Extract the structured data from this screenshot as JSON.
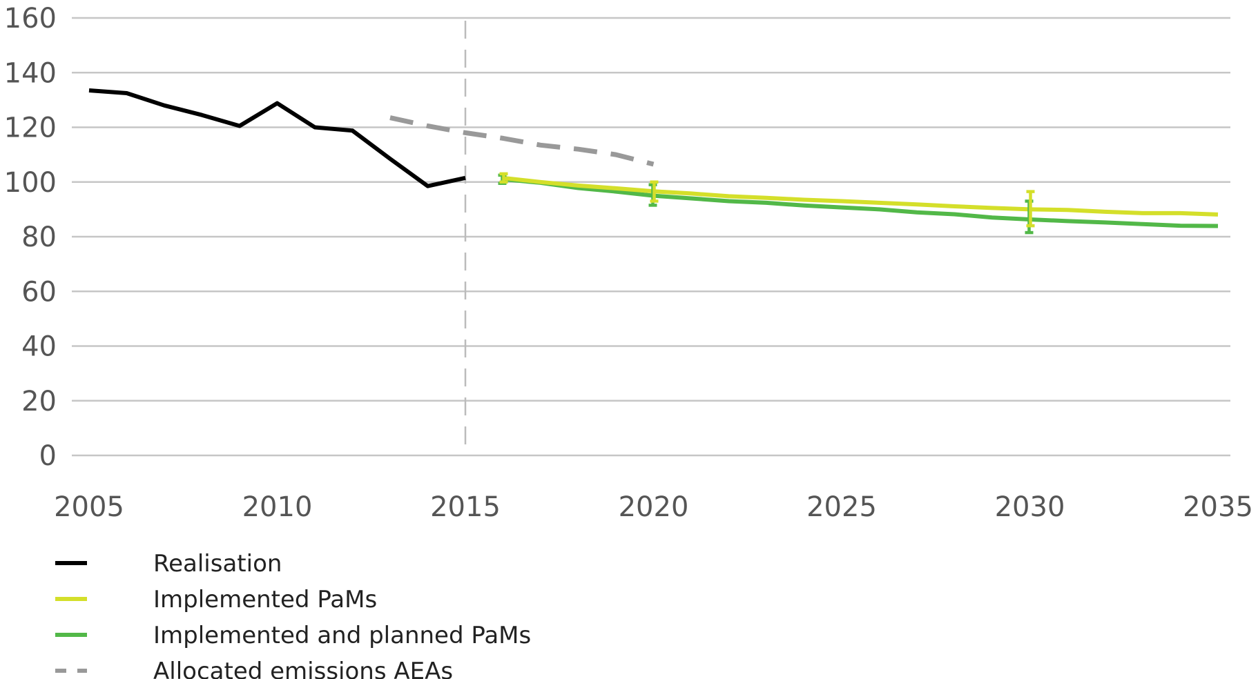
{
  "chart_data": {
    "type": "line",
    "title": "",
    "xlabel": "",
    "ylabel": "",
    "xlim": [
      2005,
      2035
    ],
    "ylim": [
      0,
      160
    ],
    "x_ticks": [
      2005,
      2010,
      2015,
      2020,
      2025,
      2030,
      2035
    ],
    "y_ticks": [
      0,
      20,
      40,
      60,
      80,
      100,
      120,
      140,
      160
    ],
    "grid": "horizontal",
    "legend_position": "bottom-left",
    "reference_line": {
      "x": 2015,
      "style": "dashed",
      "color": "#bbbbbb"
    },
    "series": [
      {
        "name": "Realisation",
        "color": "#000000",
        "style": "solid",
        "x": [
          2005,
          2006,
          2007,
          2008,
          2009,
          2010,
          2011,
          2012,
          2013,
          2014,
          2015
        ],
        "y": [
          133.5,
          132.5,
          128,
          124.5,
          120.5,
          128.8,
          120,
          118.8,
          108.5,
          98.5,
          101.5
        ]
      },
      {
        "name": "Implemented PaMs",
        "color": "#d4df2a",
        "style": "solid",
        "x": [
          2016,
          2017,
          2018,
          2019,
          2020,
          2021,
          2022,
          2023,
          2024,
          2025,
          2026,
          2027,
          2028,
          2029,
          2030,
          2031,
          2032,
          2033,
          2034,
          2035
        ],
        "y": [
          101.5,
          100,
          98.7,
          97.7,
          96.6,
          95.8,
          94.8,
          94.2,
          93.5,
          93,
          92.4,
          91.8,
          91.1,
          90.5,
          90,
          89.8,
          89.1,
          88.6,
          88.6,
          88.1
        ],
        "error_bars": [
          {
            "x": 2016,
            "low": 100,
            "high": 103
          },
          {
            "x": 2020,
            "low": 93,
            "high": 100
          },
          {
            "x": 2030,
            "low": 84,
            "high": 96.5
          }
        ]
      },
      {
        "name": "Implemented and planned PaMs",
        "color": "#52b848",
        "style": "solid",
        "x": [
          2016,
          2017,
          2018,
          2019,
          2020,
          2021,
          2022,
          2023,
          2024,
          2025,
          2026,
          2027,
          2028,
          2029,
          2030,
          2031,
          2032,
          2033,
          2034,
          2035
        ],
        "y": [
          101,
          99.7,
          97.8,
          96.5,
          95,
          94,
          93,
          92.4,
          91.4,
          90.7,
          90,
          88.9,
          88.2,
          87,
          86.3,
          85.7,
          85.2,
          84.6,
          84,
          83.9
        ],
        "error_bars": [
          {
            "x": 2016,
            "low": 99.5,
            "high": 102.5
          },
          {
            "x": 2020,
            "low": 91.5,
            "high": 99
          },
          {
            "x": 2030,
            "low": 81.5,
            "high": 93
          }
        ]
      },
      {
        "name": "Allocated emissions AEAs",
        "color": "#999999",
        "style": "dashed",
        "x": [
          2013,
          2014,
          2015,
          2016,
          2017,
          2018,
          2019,
          2020
        ],
        "y": [
          123.5,
          120.5,
          118,
          116,
          113.5,
          112,
          110,
          106.5
        ]
      }
    ]
  }
}
